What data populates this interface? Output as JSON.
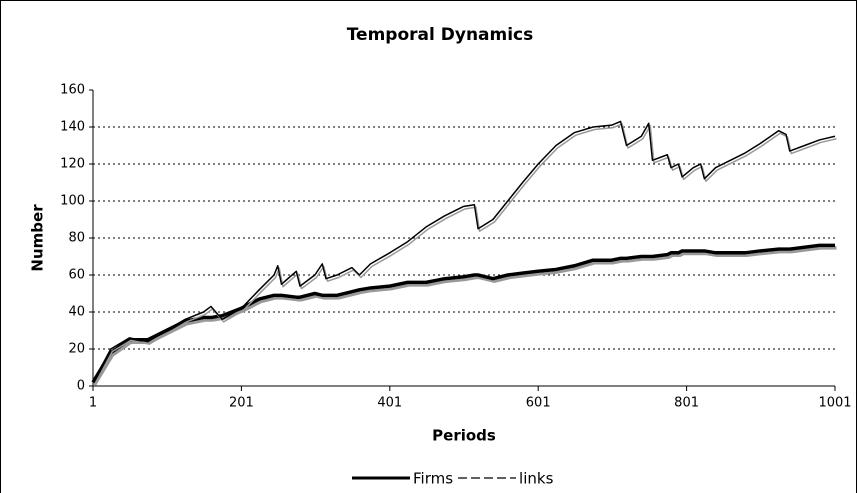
{
  "chart_data": {
    "type": "line",
    "title": "Temporal Dynamics",
    "x_label": "Periods",
    "y_label": "Number",
    "x": [
      1,
      25,
      50,
      75,
      100,
      125,
      150,
      160,
      175,
      201,
      225,
      245,
      250,
      255,
      275,
      280,
      300,
      310,
      315,
      330,
      350,
      360,
      375,
      401,
      425,
      450,
      475,
      500,
      515,
      520,
      540,
      560,
      580,
      601,
      625,
      650,
      675,
      700,
      712,
      720,
      740,
      750,
      755,
      775,
      780,
      790,
      795,
      810,
      820,
      825,
      840,
      860,
      880,
      900,
      925,
      935,
      940,
      960,
      980,
      1001
    ],
    "series": [
      {
        "name": "Firms",
        "color": "#000000",
        "width": 3.5,
        "values": [
          2,
          18,
          25,
          25,
          30,
          35,
          37,
          37,
          38,
          42,
          47,
          49,
          49,
          49,
          48,
          48,
          50,
          49,
          49,
          49,
          51,
          52,
          53,
          54,
          56,
          56,
          58,
          59,
          60,
          60,
          58,
          60,
          61,
          62,
          63,
          65,
          68,
          68,
          69,
          69,
          70,
          70,
          70,
          71,
          72,
          72,
          73,
          73,
          73,
          73,
          72,
          72,
          72,
          73,
          74,
          74,
          74,
          75,
          76,
          76
        ]
      },
      {
        "name": "links",
        "color": "#000000",
        "width": 1.5,
        "values": [
          2,
          20,
          26,
          24,
          30,
          36,
          40,
          43,
          36,
          42,
          52,
          60,
          65,
          55,
          62,
          54,
          60,
          66,
          58,
          60,
          64,
          60,
          66,
          72,
          78,
          86,
          92,
          97,
          98,
          85,
          90,
          100,
          110,
          120,
          130,
          137,
          140,
          141,
          143,
          130,
          135,
          142,
          122,
          125,
          118,
          120,
          113,
          118,
          120,
          112,
          118,
          122,
          126,
          131,
          138,
          136,
          127,
          130,
          133,
          135
        ]
      }
    ],
    "xlim": [
      1,
      1001
    ],
    "xticks": [
      1,
      201,
      401,
      601,
      801,
      1001
    ],
    "ylim": [
      0,
      160
    ],
    "yticks": [
      0,
      20,
      40,
      60,
      80,
      100,
      120,
      140,
      160
    ],
    "grid": true
  }
}
